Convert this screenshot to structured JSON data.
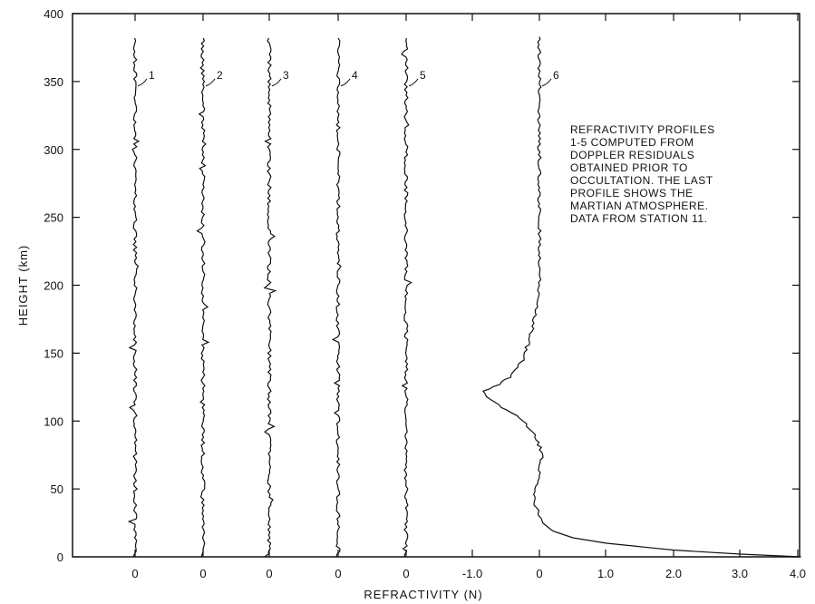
{
  "chart_data": {
    "type": "line",
    "xlabel": "REFRACTIVITY (N)",
    "ylabel": "HEIGHT (km)",
    "ylim": [
      0,
      400
    ],
    "y_ticks": [
      0,
      50,
      100,
      150,
      200,
      250,
      300,
      350,
      400
    ],
    "x_tick_labels": [
      "0",
      "0",
      "0",
      "0",
      "0",
      "-1.0",
      "0",
      "1.0",
      "2.0",
      "3.0",
      "4.0"
    ],
    "shared_x_axis_for_profile_6": {
      "ticks": [
        -1.0,
        0,
        1.0,
        2.0,
        3.0,
        4.0
      ]
    },
    "grid": false,
    "series": [
      {
        "name": "1",
        "description_offset_zero": true,
        "approx_refractivity": 0.0
      },
      {
        "name": "2",
        "description_offset_zero": true,
        "approx_refractivity": 0.0
      },
      {
        "name": "3",
        "description_offset_zero": true,
        "approx_refractivity": 0.0
      },
      {
        "name": "4",
        "description_offset_zero": true,
        "approx_refractivity": 0.0
      },
      {
        "name": "5",
        "description_offset_zero": true,
        "approx_refractivity": 0.0
      },
      {
        "name": "6",
        "points": [
          [
            3.9,
            0
          ],
          [
            3.0,
            2
          ],
          [
            2.0,
            5
          ],
          [
            1.4,
            8
          ],
          [
            1.0,
            10
          ],
          [
            0.5,
            14
          ],
          [
            0.2,
            19
          ],
          [
            0.05,
            25
          ],
          [
            0.0,
            32
          ],
          [
            -0.1,
            40
          ],
          [
            -0.05,
            50
          ],
          [
            0.0,
            62
          ],
          [
            0.05,
            75
          ],
          [
            -0.05,
            88
          ],
          [
            -0.2,
            98
          ],
          [
            -0.35,
            104
          ],
          [
            -0.55,
            110
          ],
          [
            -0.75,
            116
          ],
          [
            -0.85,
            122
          ],
          [
            -0.6,
            127
          ],
          [
            -0.4,
            134
          ],
          [
            -0.25,
            145
          ],
          [
            -0.15,
            160
          ],
          [
            -0.05,
            180
          ],
          [
            0.0,
            200
          ],
          [
            0.0,
            250
          ],
          [
            0.0,
            300
          ],
          [
            0.0,
            350
          ],
          [
            0.0,
            383
          ]
        ]
      }
    ],
    "annotation_lines": [
      "REFRACTIVITY  PROFILES",
      "1-5  COMPUTED  FROM",
      "DOPPLER  RESIDUALS",
      "OBTAINED  PRIOR  TO",
      "OCCULTATION.  THE  LAST",
      "PROFILE  SHOWS  THE",
      "MARTIAN  ATMOSPHERE.",
      "DATA  FROM  STATION  11."
    ]
  }
}
